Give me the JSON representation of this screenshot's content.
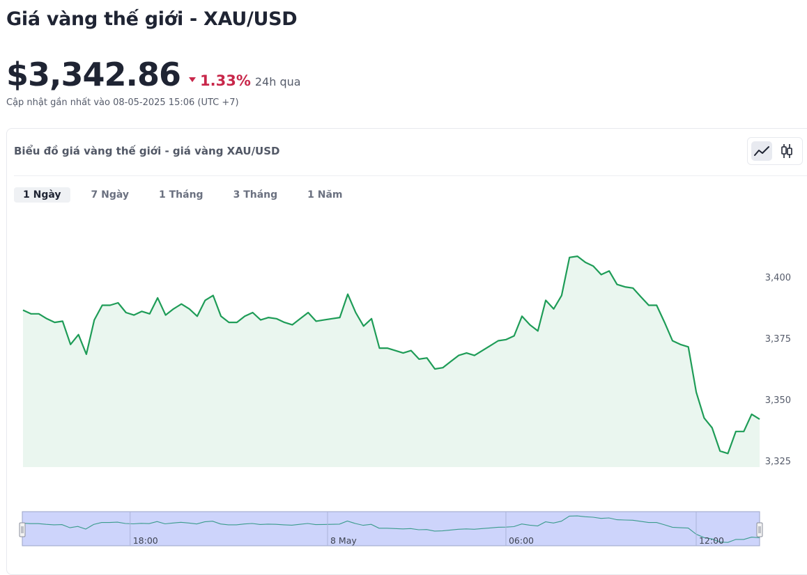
{
  "header": {
    "title": "Giá vàng thế giới - XAU/USD",
    "price": "$3,342.86",
    "change_pct": "1.33%",
    "change_period": "24h qua",
    "change_direction": "down",
    "updated": "Cập nhật gần nhất vào 08-05-2025 15:06 (UTC +7)"
  },
  "card": {
    "title": "Biểu đồ giá vàng thế giới - giá vàng XAU/USD",
    "toggle": {
      "line_icon": "line-chart-icon",
      "candle_icon": "candlestick-icon",
      "active": "line"
    }
  },
  "range_tabs": [
    {
      "label": "1 Ngày",
      "active": true
    },
    {
      "label": "7 Ngày",
      "active": false
    },
    {
      "label": "1 Tháng",
      "active": false
    },
    {
      "label": "3 Tháng",
      "active": false
    },
    {
      "label": "1 Năm",
      "active": false
    }
  ],
  "colors": {
    "line": "#1e9c57",
    "area": "#eaf6ef",
    "navigator_fill": "#cdd4fb",
    "navigator_stroke": "#9aa3c7",
    "down": "#c8274a"
  },
  "chart_data": {
    "type": "area",
    "ylim": [
      3322,
      3413
    ],
    "yticks": [
      "3,325",
      "3,350",
      "3,375",
      "3,400"
    ],
    "ytick_values": [
      3325,
      3350,
      3375,
      3400
    ],
    "navigator_labels": [
      "18:00",
      "8 May",
      "06:00",
      "12:00"
    ],
    "navigator_label_index": [
      13.6,
      38.5,
      61,
      85
    ],
    "y": [
      3386.5,
      3385,
      3385,
      3383,
      3381.5,
      3382,
      3372.5,
      3376.5,
      3368.5,
      3382.5,
      3388.5,
      3388.5,
      3389.5,
      3385.5,
      3384.5,
      3386,
      3385,
      3391.5,
      3384.5,
      3387,
      3389,
      3387,
      3384,
      3390.5,
      3392.5,
      3384,
      3381.5,
      3381.5,
      3384,
      3385.5,
      3382.5,
      3383.5,
      3383,
      3381.5,
      3380.5,
      3383,
      3385.5,
      3382,
      3382.5,
      3383,
      3383.5,
      3393,
      3385.5,
      3380,
      3383,
      3371,
      3371,
      3370,
      3369,
      3370,
      3366.5,
      3367,
      3362.5,
      3363,
      3365.5,
      3368,
      3369,
      3368,
      3370,
      3372,
      3374,
      3374.5,
      3376,
      3384,
      3380.5,
      3378,
      3390.5,
      3387,
      3392.5,
      3408,
      3408.5,
      3406,
      3404.5,
      3401,
      3402.5,
      3397,
      3396,
      3395.5,
      3392,
      3388.5,
      3388.5,
      3381.5,
      3374,
      3372.5,
      3371.5,
      3353,
      3342.5,
      3338.5,
      3329,
      3328,
      3337,
      3337,
      3344,
      3342
    ]
  }
}
